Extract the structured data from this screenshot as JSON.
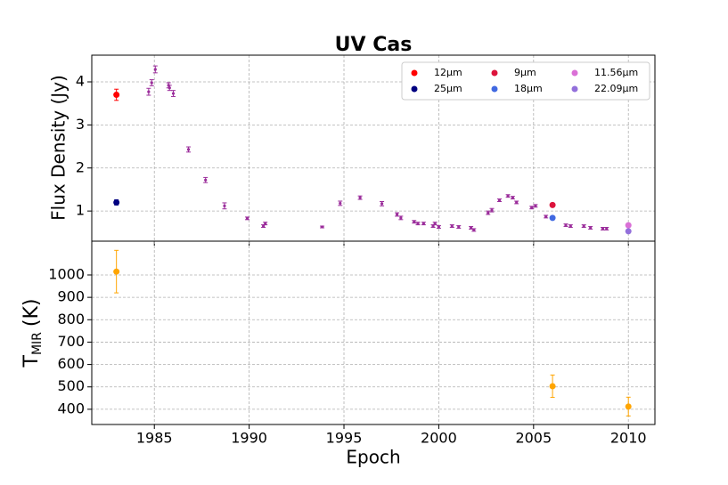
{
  "chart_data": [
    {
      "type": "scatter",
      "title": "UV Cas",
      "ylabel": "Flux Density (Jy)",
      "xlim": [
        1981.7,
        2011.4
      ],
      "xticks": [
        1985,
        1990,
        1995,
        2000,
        2005,
        2010
      ],
      "ylim": [
        0.3,
        4.62
      ],
      "yticks": [
        1,
        2,
        3,
        4
      ],
      "grid": true,
      "legend": "upper right",
      "legend_columns": 3,
      "series": [
        {
          "color": "#9b2d9b",
          "marker_size": 1.6,
          "x": [
            1984.7,
            1984.86,
            1985.05,
            1985.75,
            1985.8,
            1986.0,
            1986.8,
            1987.7,
            1988.7,
            1989.9,
            1990.75,
            1990.85,
            1993.85,
            1994.8,
            1995.85,
            1997.0,
            1997.8,
            1998.0,
            1998.7,
            1998.9,
            1999.2,
            1999.7,
            1999.8,
            2000.0,
            2000.7,
            2001.05,
            2001.7,
            2001.85,
            2002.6,
            2002.8,
            2003.2,
            2003.65,
            2003.9,
            2004.1,
            2004.9,
            2005.1,
            2005.65,
            2006.7,
            2006.95,
            2007.65,
            2008.0,
            2008.65,
            2008.85
          ],
          "values": [
            3.77,
            3.98,
            4.29,
            3.92,
            3.86,
            3.73,
            2.43,
            1.72,
            1.12,
            0.83,
            0.65,
            0.71,
            0.63,
            1.18,
            1.31,
            1.17,
            0.92,
            0.84,
            0.75,
            0.71,
            0.71,
            0.65,
            0.71,
            0.63,
            0.65,
            0.63,
            0.61,
            0.56,
            0.96,
            1.02,
            1.25,
            1.35,
            1.31,
            1.2,
            1.08,
            1.12,
            0.87,
            0.67,
            0.65,
            0.65,
            0.61,
            0.59,
            0.59
          ],
          "errors": [
            0.08,
            0.07,
            0.08,
            0.06,
            0.06,
            0.07,
            0.06,
            0.06,
            0.07,
            0.03,
            0.03,
            0.03,
            0.02,
            0.05,
            0.04,
            0.05,
            0.04,
            0.04,
            0.03,
            0.03,
            0.03,
            0.03,
            0.03,
            0.03,
            0.03,
            0.03,
            0.03,
            0.03,
            0.04,
            0.04,
            0.03,
            0.03,
            0.03,
            0.03,
            0.03,
            0.03,
            0.03,
            0.03,
            0.03,
            0.03,
            0.03,
            0.03,
            0.03
          ]
        },
        {
          "name": "12μm",
          "color": "#ff0000",
          "marker_size": 3.5,
          "x": [
            1983.0
          ],
          "values": [
            3.7
          ],
          "errors": [
            0.13
          ]
        },
        {
          "name": "25μm",
          "color": "#000080",
          "marker_size": 3.5,
          "x": [
            1983.0
          ],
          "values": [
            1.2
          ],
          "errors": [
            0.06
          ]
        },
        {
          "name": "9μm",
          "color": "#dc143c",
          "marker_size": 3.5,
          "x": [
            2006.0
          ],
          "values": [
            1.14
          ],
          "errors": [
            0.02
          ]
        },
        {
          "name": "18μm",
          "color": "#4169e1",
          "marker_size": 3.5,
          "x": [
            2006.0
          ],
          "values": [
            0.84
          ],
          "errors": [
            0.02
          ]
        },
        {
          "name": "11.56μm",
          "color": "#da70d6",
          "marker_size": 3.5,
          "x": [
            2010.0
          ],
          "values": [
            0.67
          ],
          "errors": [
            0.02
          ]
        },
        {
          "name": "22.09μm",
          "color": "#9370db",
          "marker_size": 3.5,
          "x": [
            2010.0
          ],
          "values": [
            0.53
          ],
          "errors": [
            0.02
          ]
        }
      ]
    },
    {
      "type": "scatter",
      "xlabel": "Epoch",
      "ylabel_parts": [
        "T",
        "MIR",
        "(K)"
      ],
      "xlim": [
        1981.7,
        2011.4
      ],
      "xticks": [
        1985,
        1990,
        1995,
        2000,
        2005,
        2010
      ],
      "ylim": [
        332,
        1151
      ],
      "yticks": [
        400,
        500,
        600,
        700,
        800,
        900,
        1000
      ],
      "grid": true,
      "series": [
        {
          "color": "#ffa500",
          "marker_size": 3.5,
          "x": [
            1983.0,
            2006.0,
            2010.0
          ],
          "values": [
            1015,
            503,
            412
          ],
          "errors": [
            95,
            50,
            42
          ]
        }
      ]
    }
  ]
}
